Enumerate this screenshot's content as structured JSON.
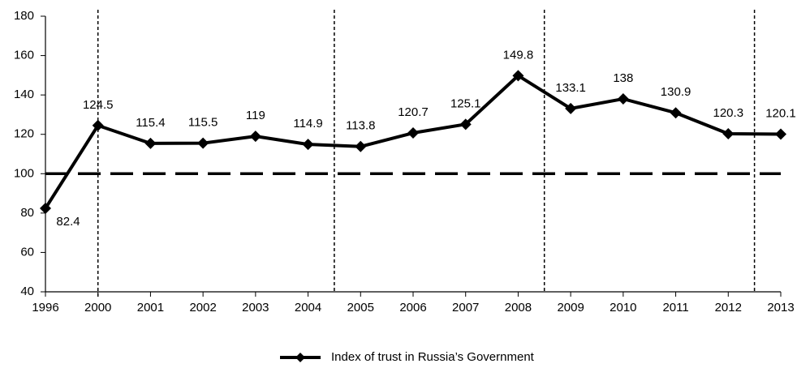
{
  "chart_data": {
    "type": "line",
    "categories": [
      "1996",
      "2000",
      "2001",
      "2002",
      "2003",
      "2004",
      "2005",
      "2006",
      "2007",
      "2008",
      "2009",
      "2010",
      "2011",
      "2012",
      "2013"
    ],
    "series": [
      {
        "name": "Index of trust in Russia’s Government",
        "color": "#000000",
        "values": [
          82.4,
          124.5,
          115.4,
          115.5,
          119,
          114.9,
          113.8,
          120.7,
          125.1,
          149.8,
          133.1,
          138,
          130.9,
          120.3,
          120.1
        ]
      }
    ],
    "ylim": [
      40,
      180
    ],
    "yticks": [
      40,
      60,
      80,
      100,
      120,
      140,
      160,
      180
    ],
    "reference_line": 100,
    "legend": "bottom"
  }
}
